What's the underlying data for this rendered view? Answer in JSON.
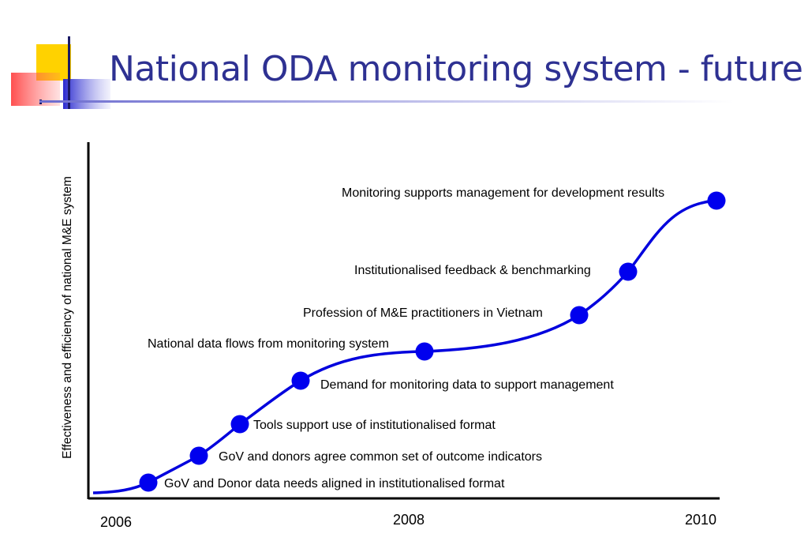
{
  "title": "National ODA monitoring system - future",
  "y_axis_label": "Effectiveness and efficiency of national M&E system",
  "x_ticks": [
    "2006",
    "2008",
    "2010"
  ],
  "colors": {
    "title": "#2e3192",
    "curve": "#0000dd",
    "milestone": "#0000ee",
    "axis": "#000000",
    "logo_yellow": "#ffd200",
    "logo_red": "#ff3b3b",
    "logo_blue": "#3a3ad6"
  },
  "milestones": [
    {
      "label": "GoV and Donor data needs aligned in institutionalised format"
    },
    {
      "label": "GoV and donors agree common set of outcome indicators"
    },
    {
      "label": "Tools support use of institutionalised format"
    },
    {
      "label": "Demand for monitoring data to support management"
    },
    {
      "label": "National data flows from monitoring system"
    },
    {
      "label": "Profession of M&E practitioners in Vietnam"
    },
    {
      "label": "Institutionalised feedback & benchmarking"
    },
    {
      "label": "Monitoring supports management for development results"
    }
  ]
}
